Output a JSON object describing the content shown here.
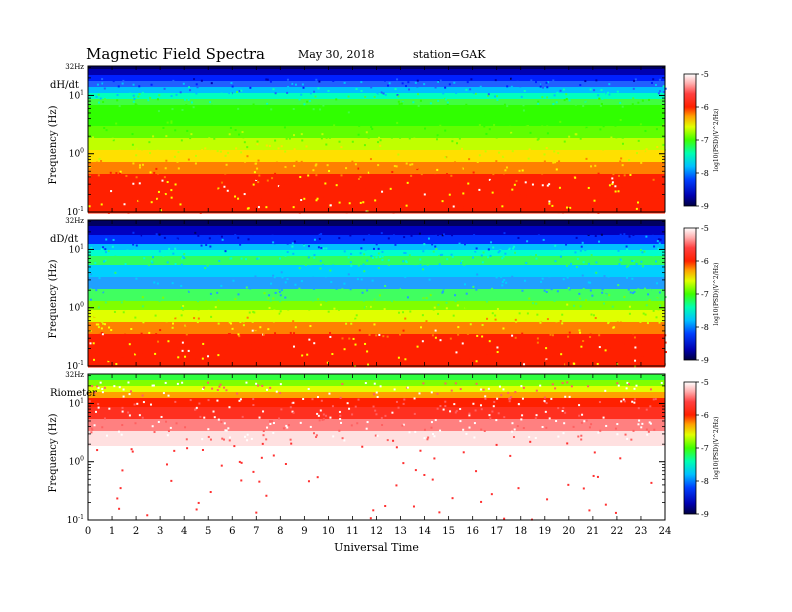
{
  "header": {
    "title": "Magnetic  Field  Spectra",
    "date": "May 30, 2018",
    "station": "station=GAK"
  },
  "chart_data": [
    {
      "type": "heatmap",
      "panel_label": "dH/dt",
      "ylabel": "Frequency  (Hz)",
      "x": [
        0,
        24
      ],
      "y": [
        0.1,
        32
      ],
      "yscale": "log",
      "ytick_labels": [
        "32Hz",
        "10^1",
        "10^0",
        "10^-1"
      ],
      "colorbar_label": "log10(PSD)(V^2/Hz)",
      "colorbar_ticks": [
        "-5",
        "-6",
        "-7",
        "-8",
        "-9"
      ],
      "colorbar_range": [
        -9,
        -5
      ]
    },
    {
      "type": "heatmap",
      "panel_label": "dD/dt",
      "ylabel": "Frequency  (Hz)",
      "x": [
        0,
        24
      ],
      "y": [
        0.1,
        32
      ],
      "yscale": "log",
      "ytick_labels": [
        "32Hz",
        "10^1",
        "10^0",
        "10^-1"
      ],
      "colorbar_label": "log10(PSD)(V^2/Hz)",
      "colorbar_ticks": [
        "-5",
        "-6",
        "-7",
        "-8",
        "-9"
      ],
      "colorbar_range": [
        -9,
        -5
      ]
    },
    {
      "type": "heatmap",
      "panel_label": "Riometer",
      "ylabel": "Frequency  (Hz)",
      "x": [
        0,
        24
      ],
      "y": [
        0.1,
        32
      ],
      "yscale": "log",
      "ytick_labels": [
        "32Hz",
        "10^1",
        "10^0",
        "10^-1"
      ],
      "colorbar_label": "log10(PSD)(V^2/Hz)",
      "colorbar_ticks": [
        "-5",
        "-6",
        "-7",
        "-8",
        "-9"
      ],
      "colorbar_range": [
        -9,
        -5
      ]
    }
  ],
  "xaxis": {
    "label": "Universal Time",
    "ticks": [
      "0",
      "1",
      "2",
      "3",
      "4",
      "5",
      "6",
      "7",
      "8",
      "9",
      "10",
      "11",
      "12",
      "13",
      "14",
      "15",
      "16",
      "17",
      "18",
      "19",
      "20",
      "21",
      "22",
      "23",
      "24"
    ]
  },
  "colors": {
    "colormap": [
      "#000040",
      "#0000a0",
      "#0000ff",
      "#0080ff",
      "#00e0ff",
      "#00ff80",
      "#40ff00",
      "#c0ff00",
      "#ffff00",
      "#ffa000",
      "#ff3000",
      "#ff0000",
      "#ff6060",
      "#ffd0d0",
      "#ffffff"
    ]
  }
}
